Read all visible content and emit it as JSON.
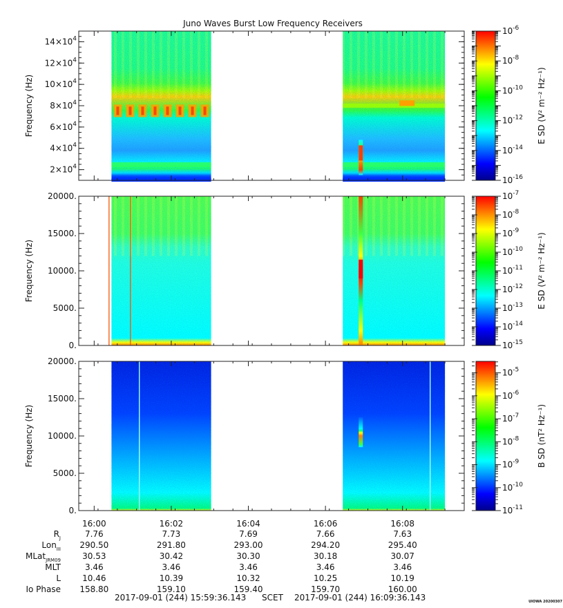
{
  "title": "Juno Waves Burst Low Frequency Receivers",
  "stamp": "UIOWA 20200307",
  "scet": {
    "start": "2017-09-01 (244) 15:59:36.143",
    "label": "SCET",
    "end": "2017-09-01 (244) 16:09:36.143"
  },
  "colormap": [
    "#00008b",
    "#0000ff",
    "#0080ff",
    "#00ffff",
    "#00ff80",
    "#00ff00",
    "#80ff00",
    "#ffff00",
    "#ff8000",
    "#ff0000"
  ],
  "chart_data": [
    {
      "type": "heatmap",
      "name": "panel-top",
      "xlabel": "",
      "ylabel": "Frequency (Hz)",
      "ylim": [
        10000,
        150000
      ],
      "yticks": [
        {
          "v": 20000,
          "m": "2",
          "e": "4"
        },
        {
          "v": 40000,
          "m": "4",
          "e": "4"
        },
        {
          "v": 60000,
          "m": "6",
          "e": "4"
        },
        {
          "v": 80000,
          "m": "8",
          "e": "4"
        },
        {
          "v": 100000,
          "m": "10",
          "e": "4"
        },
        {
          "v": 120000,
          "m": "12",
          "e": "4"
        },
        {
          "v": 140000,
          "m": "14",
          "e": "4"
        }
      ],
      "colorbar": {
        "label": "E SD (V² m⁻² Hz⁻¹)",
        "log_min": -16,
        "log_max": -6,
        "ticks": [
          -16,
          -14,
          -12,
          -10,
          -8,
          -6
        ]
      },
      "data_intervals": [
        {
          "start": "16:00:27",
          "end": "16:03:02"
        },
        {
          "start": "16:06:27",
          "end": "16:09:06"
        }
      ],
      "features": [
        {
          "what": "intense emission band",
          "freq_hz": [
            68000,
            85000
          ],
          "level": -8
        },
        {
          "what": "burst spike",
          "time": "16:06:55",
          "freq_hz": [
            15000,
            48000
          ],
          "level": -8
        }
      ]
    },
    {
      "type": "heatmap",
      "name": "panel-mid",
      "ylabel": "Frequency (Hz)",
      "ylim": [
        0,
        20000
      ],
      "yticks": [
        {
          "v": 0,
          "label": "0."
        },
        {
          "v": 5000,
          "label": "5000."
        },
        {
          "v": 10000,
          "label": "10000."
        },
        {
          "v": 15000,
          "label": "15000."
        },
        {
          "v": 20000,
          "label": "20000."
        }
      ],
      "colorbar": {
        "label": "E SD (V² m⁻² Hz⁻¹)",
        "log_min": -15,
        "log_max": -7,
        "ticks": [
          -15,
          -14,
          -13,
          -12,
          -11,
          -10,
          -9,
          -8,
          -7
        ]
      },
      "data_intervals": [
        {
          "start": "16:00:27",
          "end": "16:03:02"
        },
        {
          "start": "16:06:27",
          "end": "16:09:06"
        }
      ],
      "features": [
        {
          "what": "burst spike",
          "time": "16:06:55",
          "freq_hz": [
            9000,
            11500
          ],
          "level": -7
        }
      ]
    },
    {
      "type": "heatmap",
      "name": "panel-bottom",
      "ylabel": "Frequency (Hz)",
      "ylim": [
        0,
        20000
      ],
      "yticks": [
        {
          "v": 0,
          "label": "0."
        },
        {
          "v": 5000,
          "label": "5000."
        },
        {
          "v": 10000,
          "label": "10000."
        },
        {
          "v": 15000,
          "label": "15000."
        },
        {
          "v": 20000,
          "label": "20000."
        }
      ],
      "colorbar": {
        "label": "B SD (nT² Hz⁻¹)",
        "log_min": -11,
        "log_max": -4.5,
        "ticks": [
          -11,
          -10,
          -9,
          -8,
          -7,
          -6,
          -5
        ]
      },
      "data_intervals": [
        {
          "start": "16:00:27",
          "end": "16:03:02"
        },
        {
          "start": "16:06:27",
          "end": "16:09:06"
        }
      ],
      "features": [
        {
          "what": "burst spike",
          "time": "16:06:55",
          "freq_hz": [
            8500,
            12500
          ],
          "level": -5
        }
      ]
    }
  ],
  "time_axis": {
    "range": [
      "15:59:36",
      "16:09:36"
    ],
    "ticks": [
      "16:00",
      "16:02",
      "16:04",
      "16:06",
      "16:08"
    ]
  },
  "ephemeris": {
    "labels": [
      {
        "main": "R",
        "sub": "J"
      },
      {
        "main": "Lon",
        "sub": "III"
      },
      {
        "main": "MLat",
        "sub": "JRM09"
      },
      {
        "main": "MLT",
        "sub": ""
      },
      {
        "main": "L",
        "sub": ""
      },
      {
        "main": "Io Phase",
        "sub": ""
      }
    ],
    "times": [
      "16:00",
      "16:02",
      "16:04",
      "16:06",
      "16:08"
    ],
    "rows": [
      [
        "7.76",
        "7.73",
        "7.69",
        "7.66",
        "7.63"
      ],
      [
        "290.50",
        "291.80",
        "293.00",
        "294.20",
        "295.40"
      ],
      [
        "30.53",
        "30.42",
        "30.30",
        "30.18",
        "30.07"
      ],
      [
        "3.46",
        "3.46",
        "3.46",
        "3.46",
        "3.46"
      ],
      [
        "10.46",
        "10.39",
        "10.32",
        "10.25",
        "10.19"
      ],
      [
        "158.80",
        "159.10",
        "159.40",
        "159.70",
        "160.00"
      ]
    ]
  }
}
